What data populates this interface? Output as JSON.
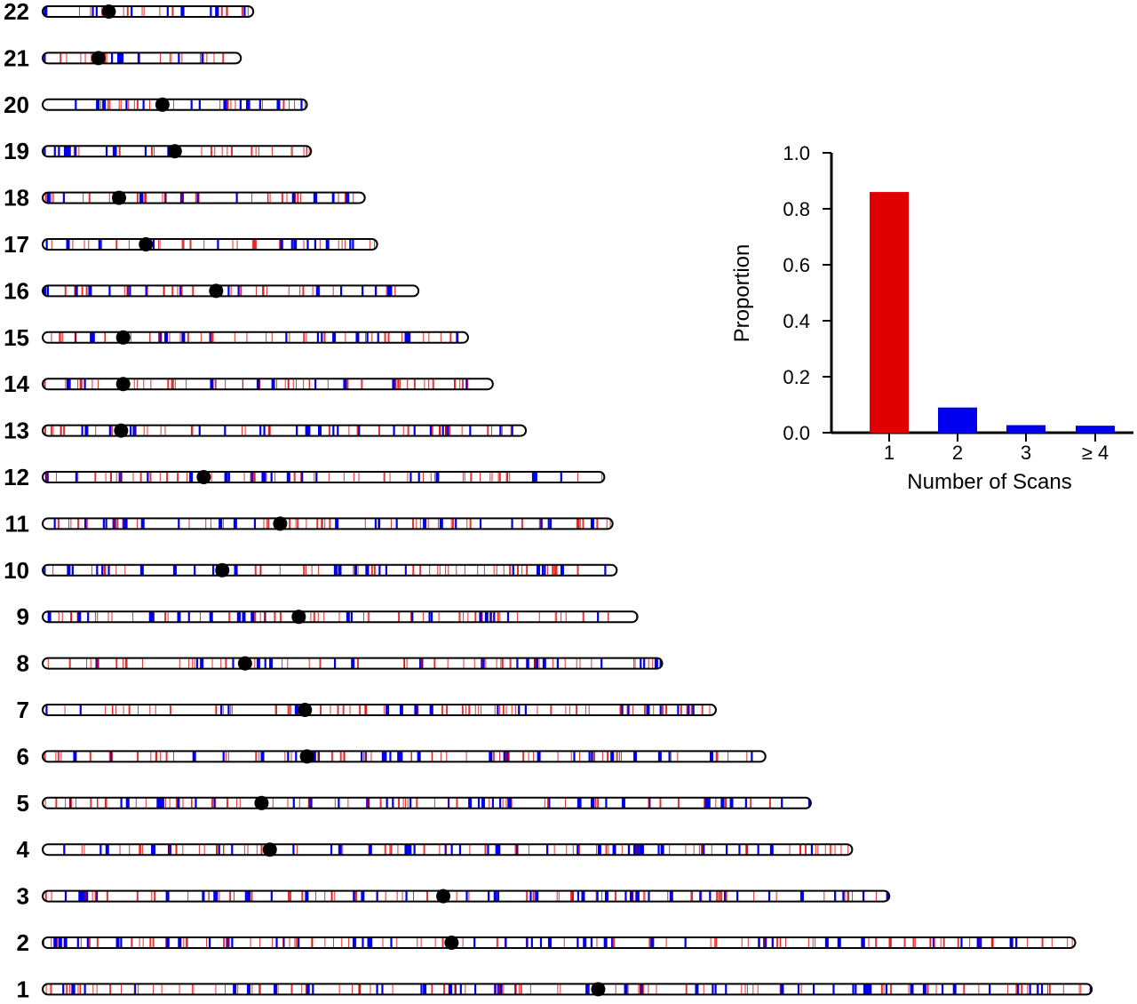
{
  "chart_data": [
    {
      "type": "ideogram",
      "chromosomes": [
        {
          "label": "22",
          "length": 51,
          "centromere": 16
        },
        {
          "label": "21",
          "length": 48,
          "centromere": 13.5
        },
        {
          "label": "20",
          "length": 64,
          "centromere": 29
        },
        {
          "label": "19",
          "length": 65,
          "centromere": 32
        },
        {
          "label": "18",
          "length": 78,
          "centromere": 18.5
        },
        {
          "label": "17",
          "length": 81,
          "centromere": 25
        },
        {
          "label": "16",
          "length": 91,
          "centromere": 42
        },
        {
          "label": "15",
          "length": 103,
          "centromere": 19.5
        },
        {
          "label": "14",
          "length": 109,
          "centromere": 19.5
        },
        {
          "label": "13",
          "length": 117,
          "centromere": 19
        },
        {
          "label": "12",
          "length": 136,
          "centromere": 39
        },
        {
          "label": "11",
          "length": 138,
          "centromere": 57.5
        },
        {
          "label": "10",
          "length": 139,
          "centromere": 43.5
        },
        {
          "label": "9",
          "length": 144,
          "centromere": 62
        },
        {
          "label": "8",
          "length": 150,
          "centromere": 49
        },
        {
          "label": "7",
          "length": 163,
          "centromere": 63.5
        },
        {
          "label": "6",
          "length": 175,
          "centromere": 64
        },
        {
          "label": "5",
          "length": 186,
          "centromere": 53
        },
        {
          "label": "4",
          "length": 196,
          "centromere": 55
        },
        {
          "label": "3",
          "length": 205,
          "centromere": 97
        },
        {
          "label": "2",
          "length": 250,
          "centromere": 99
        },
        {
          "label": "1",
          "length": 254,
          "centromere": 134.5
        }
      ],
      "mark_colors": {
        "one_scan": "#e00000",
        "multiple_scans": "#0000ee"
      }
    },
    {
      "type": "bar",
      "categories": [
        "1",
        "2",
        "3",
        "≥ 4"
      ],
      "values": [
        0.86,
        0.09,
        0.027,
        0.025
      ],
      "colors": [
        "#e00000",
        "#0000ee",
        "#0000ee",
        "#0000ee"
      ],
      "xlabel": "Number of Scans",
      "ylabel": "Proportion",
      "ylim": [
        0,
        1.0
      ],
      "yticks": [
        "0.0",
        "0.2",
        "0.4",
        "0.6",
        "0.8",
        "1.0"
      ]
    }
  ]
}
